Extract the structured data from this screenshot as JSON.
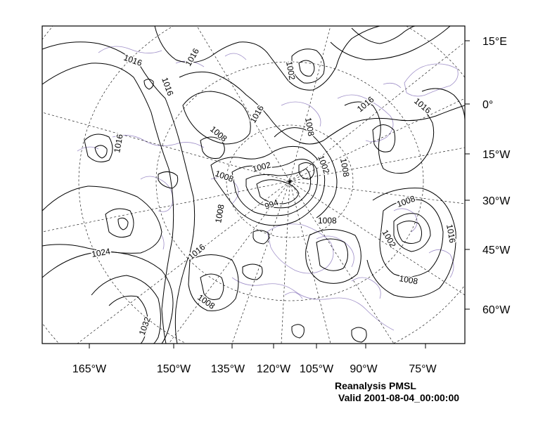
{
  "caption": {
    "title": "Reanalysis PMSL",
    "valid": "Valid 2001-08-04_00:00:00"
  },
  "bottom_axis": [
    "165°W",
    "150°W",
    "135°W",
    "120°W",
    "105°W",
    "90°W",
    "75°W"
  ],
  "right_axis": [
    "15°E",
    "0°",
    "15°W",
    "30°W",
    "45°W",
    "60°W"
  ],
  "contour_labels": [
    "1016",
    "1016",
    "1016",
    "1016",
    "1016",
    "1016",
    "1016",
    "1002",
    "1008",
    "1008",
    "1008",
    "1008",
    "1002",
    "994",
    "1002",
    "1008",
    "1008",
    "1008",
    "1008",
    "1016",
    "1024",
    "1032",
    "1008",
    "1016",
    "1002",
    "1008"
  ],
  "colors": {
    "contour": "#000000",
    "coastline": "#9f8fc8",
    "grid": "#000000",
    "background": "#ffffff"
  }
}
